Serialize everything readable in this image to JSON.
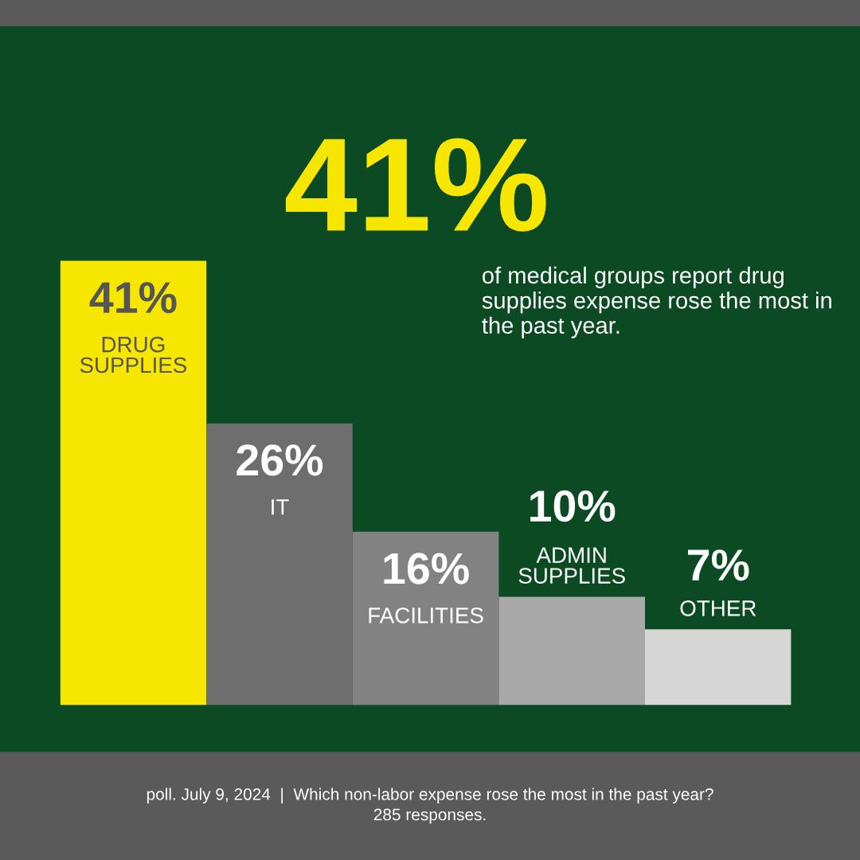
{
  "chart_data": {
    "type": "bar",
    "title": "41%",
    "subtitle": "of medical groups report drug supplies expense rose the most in the past year.",
    "categories": [
      "DRUG\nSUPPLIES",
      "IT",
      "FACILITIES",
      "ADMIN\nSUPPLIES",
      "OTHER"
    ],
    "values": [
      41,
      26,
      16,
      10,
      7
    ],
    "colors": [
      "#f7e600",
      "#6e6e6e",
      "#828282",
      "#a9a9a9",
      "#d6d6d6"
    ],
    "value_labels": [
      "41%",
      "26%",
      "16%",
      "10%",
      "7%"
    ],
    "annotations": [
      "poll. July 9, 2024  |  Which non-labor expense rose the most in the past year?\n285 responses."
    ]
  }
}
